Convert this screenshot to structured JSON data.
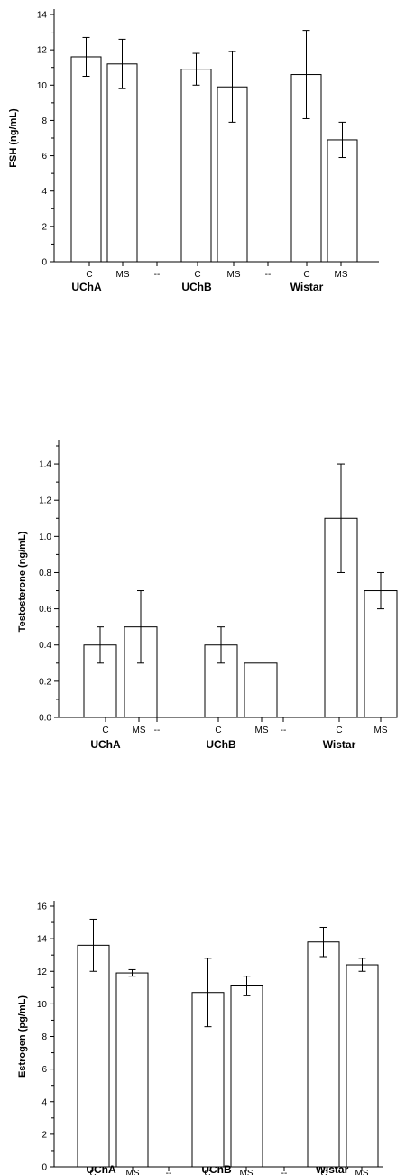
{
  "chart_data": [
    {
      "type": "bar",
      "ylabel": "FSH (ng/mL)",
      "ylim": [
        0,
        14
      ],
      "yticks": [
        "0",
        "2",
        "4",
        "6",
        "8",
        "10",
        "12",
        "14"
      ],
      "x_tick_labels": [
        "C",
        "MS",
        "--",
        "C",
        "MS",
        "--",
        "C",
        "MS"
      ],
      "groups": [
        "UChA",
        "UChB",
        "Wistar"
      ],
      "bars": [
        {
          "group": "UChA",
          "label": "C",
          "value": 11.6,
          "error": 1.1
        },
        {
          "group": "UChA",
          "label": "MS",
          "value": 11.2,
          "error": 1.4
        },
        {
          "group": "UChB",
          "label": "C",
          "value": 10.9,
          "error": 0.9
        },
        {
          "group": "UChB",
          "label": "MS",
          "value": 9.9,
          "error": 2.0
        },
        {
          "group": "Wistar",
          "label": "C",
          "value": 10.6,
          "error": 2.5
        },
        {
          "group": "Wistar",
          "label": "MS",
          "value": 6.9,
          "error": 1.0
        }
      ]
    },
    {
      "type": "bar",
      "ylabel": "Testosterone (ng/mL)",
      "ylim": [
        0,
        1.5
      ],
      "yticks": [
        "0.0",
        "0.2",
        "0.4",
        "0.6",
        "0.8",
        "1.0",
        "1.2",
        "1.4"
      ],
      "x_tick_labels": [
        "C",
        "MS",
        "--",
        "C",
        "MS",
        "--",
        "C",
        "MS"
      ],
      "groups": [
        "UChA",
        "UChB",
        "Wistar"
      ],
      "bars": [
        {
          "group": "UChA",
          "label": "C",
          "value": 0.4,
          "error": 0.1
        },
        {
          "group": "UChA",
          "label": "MS",
          "value": 0.5,
          "error": 0.2
        },
        {
          "group": "UChB",
          "label": "C",
          "value": 0.4,
          "error": 0.1
        },
        {
          "group": "UChB",
          "label": "MS",
          "value": 0.3,
          "error": 0
        },
        {
          "group": "Wistar",
          "label": "C",
          "value": 1.1,
          "error": 0.3
        },
        {
          "group": "Wistar",
          "label": "MS",
          "value": 0.7,
          "error": 0.1
        }
      ]
    },
    {
      "type": "bar",
      "ylabel": "Estrogen (pg/mL)",
      "ylim": [
        0,
        16
      ],
      "yticks": [
        "0",
        "2",
        "4",
        "6",
        "8",
        "10",
        "12",
        "14",
        "16"
      ],
      "x_tick_labels": [
        "C",
        "MS",
        "--",
        "C",
        "MS",
        "--",
        "C",
        "MS"
      ],
      "groups": [
        "UChA",
        "UChB",
        "Wistar"
      ],
      "bars": [
        {
          "group": "UChA",
          "label": "C",
          "value": 13.6,
          "error": 1.6
        },
        {
          "group": "UChA",
          "label": "MS",
          "value": 11.9,
          "error": 0.2
        },
        {
          "group": "UChB",
          "label": "C",
          "value": 10.7,
          "error": 2.1
        },
        {
          "group": "UChB",
          "label": "MS",
          "value": 11.1,
          "error": 0.6
        },
        {
          "group": "Wistar",
          "label": "C",
          "value": 13.8,
          "error": 0.9
        },
        {
          "group": "Wistar",
          "label": "MS",
          "value": 12.4,
          "error": 0.4
        }
      ]
    }
  ]
}
